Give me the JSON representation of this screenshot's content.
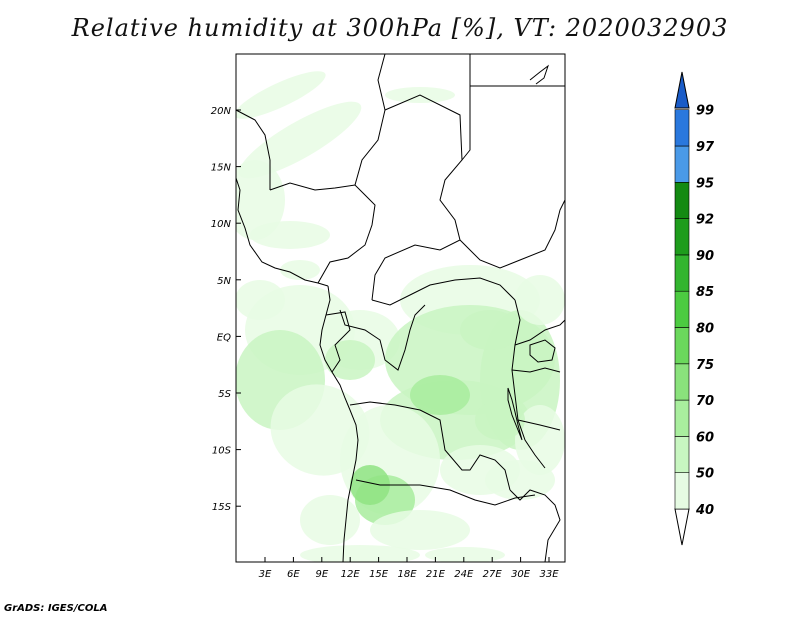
{
  "title": "Relative humidity at 300hPa [%], VT: 2020032903",
  "credit": "GrADS: IGES/COLA",
  "map": {
    "lat_labels": [
      "20N",
      "15N",
      "10N",
      "5N",
      "EQ",
      "5S",
      "10S",
      "15S"
    ],
    "lon_labels": [
      "3E",
      "6E",
      "9E",
      "12E",
      "15E",
      "18E",
      "21E",
      "24E",
      "27E",
      "30E",
      "33E"
    ]
  },
  "colorbar": {
    "levels": [
      "40",
      "50",
      "60",
      "70",
      "75",
      "80",
      "85",
      "90",
      "92",
      "95",
      "97",
      "99"
    ],
    "colors": [
      "#ffffff",
      "#e6fbe3",
      "#c8f6c1",
      "#a9ee9e",
      "#8ae27c",
      "#6bd85c",
      "#4ccb41",
      "#33b52f",
      "#1e9c1c",
      "#138a12",
      "#4a9ae8",
      "#2a78dd",
      "#1a5cc8"
    ]
  },
  "humidity_colors": [
    "#e7fbe4",
    "#c9f5c2",
    "#a8ec9d",
    "#8fe382"
  ]
}
